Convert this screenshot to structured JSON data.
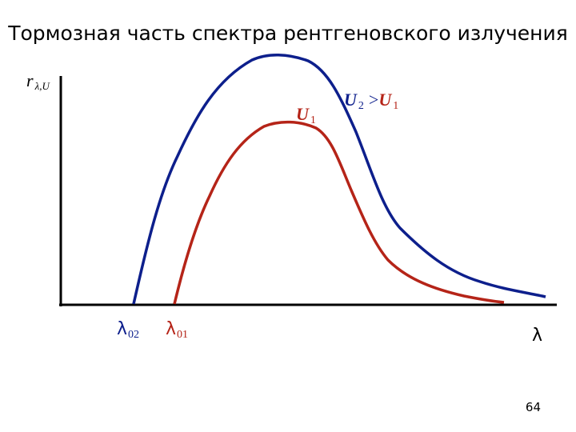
{
  "title": "Тормозная часть спектра рентгеновского излучения",
  "y_axis": {
    "symbol": "r",
    "subscript": "λ,U"
  },
  "x_axis": {
    "symbol": "λ"
  },
  "curves": [
    {
      "symbol": "U",
      "subscript": "2",
      "relation": ">",
      "ref_symbol": "U",
      "ref_subscript": "1",
      "cutoff_symbol": "λ",
      "cutoff_subscript": "02"
    },
    {
      "symbol": "U",
      "subscript": "1",
      "cutoff_symbol": "λ",
      "cutoff_subscript": "01"
    }
  ],
  "page_number": "64"
}
